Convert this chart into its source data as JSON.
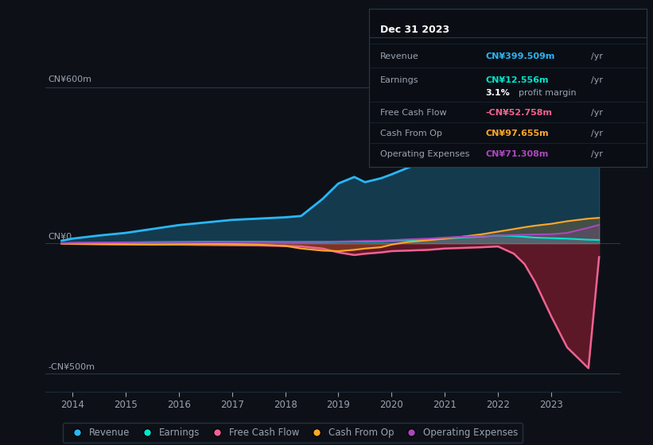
{
  "background_color": "#0d1117",
  "plot_bg_color": "#0d1117",
  "grid_color": "#1e2a3a",
  "text_color": "#9ba3b0",
  "ylabel_600": "CN¥600m",
  "ylabel_0": "CN¥0",
  "ylabel_neg500": "-CN¥500m",
  "xlim": [
    2013.5,
    2024.3
  ],
  "ylim": [
    -570,
    730
  ],
  "years": [
    2013.8,
    2014.0,
    2014.5,
    2015.0,
    2015.5,
    2016.0,
    2016.5,
    2017.0,
    2017.5,
    2018.0,
    2018.3,
    2018.7,
    2019.0,
    2019.3,
    2019.5,
    2019.8,
    2020.0,
    2020.3,
    2020.7,
    2021.0,
    2021.3,
    2021.7,
    2022.0,
    2022.3,
    2022.5,
    2022.7,
    2023.0,
    2023.3,
    2023.7,
    2023.9
  ],
  "revenue": [
    10,
    18,
    30,
    40,
    55,
    70,
    80,
    90,
    95,
    100,
    105,
    170,
    230,
    255,
    235,
    250,
    265,
    290,
    320,
    360,
    420,
    490,
    570,
    590,
    565,
    540,
    500,
    450,
    420,
    400
  ],
  "earnings": [
    0,
    1,
    2,
    3,
    4,
    5,
    6,
    6,
    6,
    5,
    5,
    5,
    6,
    7,
    7,
    8,
    10,
    12,
    15,
    18,
    22,
    26,
    30,
    28,
    25,
    22,
    20,
    18,
    14,
    13
  ],
  "free_cash": [
    -1,
    -2,
    -3,
    -4,
    -5,
    -5,
    -6,
    -7,
    -8,
    -10,
    -12,
    -20,
    -35,
    -45,
    -40,
    -35,
    -30,
    -28,
    -25,
    -20,
    -18,
    -15,
    -12,
    -40,
    -80,
    -150,
    -280,
    -400,
    -480,
    -53
  ],
  "cash_op": [
    -1,
    -2,
    -3,
    -4,
    -5,
    -4,
    -3,
    -3,
    -5,
    -10,
    -20,
    -28,
    -30,
    -25,
    -20,
    -15,
    -5,
    5,
    12,
    18,
    25,
    35,
    45,
    55,
    62,
    68,
    75,
    85,
    95,
    98
  ],
  "op_expenses": [
    1,
    2,
    3,
    4,
    5,
    5,
    5,
    5,
    5,
    5,
    5,
    6,
    7,
    8,
    9,
    10,
    12,
    15,
    18,
    22,
    25,
    28,
    30,
    32,
    33,
    34,
    35,
    40,
    60,
    71
  ],
  "revenue_color": "#29b6f6",
  "earnings_color": "#00e5cc",
  "free_cash_color": "#f06292",
  "cash_op_color": "#ffa726",
  "op_expenses_color": "#ab47bc",
  "info_box": {
    "date": "Dec 31 2023",
    "revenue_label": "Revenue",
    "revenue_value": "CN¥399.509m",
    "revenue_unit": "/yr",
    "earnings_label": "Earnings",
    "earnings_value": "CN¥12.556m",
    "earnings_unit": "/yr",
    "margin_bold": "3.1%",
    "margin_text": "profit margin",
    "fcf_label": "Free Cash Flow",
    "fcf_value": "-CN¥52.758m",
    "fcf_unit": "/yr",
    "cashop_label": "Cash From Op",
    "cashop_value": "CN¥97.655m",
    "cashop_unit": "/yr",
    "opex_label": "Operating Expenses",
    "opex_value": "CN¥71.308m",
    "opex_unit": "/yr"
  },
  "legend": [
    {
      "label": "Revenue",
      "color": "#29b6f6"
    },
    {
      "label": "Earnings",
      "color": "#00e5cc"
    },
    {
      "label": "Free Cash Flow",
      "color": "#f06292"
    },
    {
      "label": "Cash From Op",
      "color": "#ffa726"
    },
    {
      "label": "Operating Expenses",
      "color": "#ab47bc"
    }
  ],
  "xticks": [
    2014,
    2015,
    2016,
    2017,
    2018,
    2019,
    2020,
    2021,
    2022,
    2023
  ]
}
